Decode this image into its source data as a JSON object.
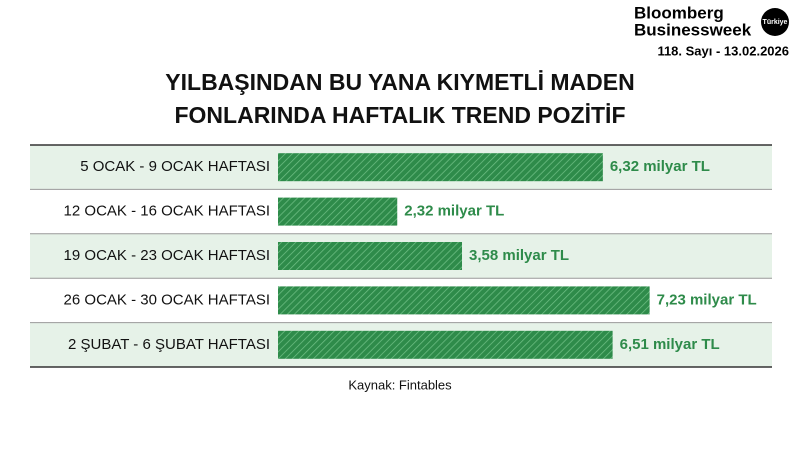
{
  "header": {
    "brand_line1": "Bloomberg",
    "brand_line2": "Businessweek",
    "badge": "Türkiye",
    "issue": "118. Sayı - 13.02.2026"
  },
  "chart_data": {
    "type": "hbar",
    "title": [
      "YILBAŞINDAN BU YANA KIYMETLİ MADEN",
      "FONLARINDA HAFTALIK TREND POZİTİF"
    ],
    "categories": [
      "5 OCAK - 9 OCAK HAFTASI",
      "12 OCAK - 16 OCAK HAFTASI",
      "19 OCAK - 23 OCAK HAFTASI",
      "26 OCAK - 30 OCAK HAFTASI",
      "2 ŞUBAT - 6 ŞUBAT HAFTASI"
    ],
    "values": [
      6.32,
      2.32,
      3.58,
      7.23,
      6.51
    ],
    "value_labels": [
      "6,32 milyar TL",
      "2,32 milyar TL",
      "3,58 milyar TL",
      "7,23 milyar TL",
      "6,51 milyar TL"
    ],
    "color": "#2e8b4a",
    "source": "Kaynak: Fintables"
  }
}
